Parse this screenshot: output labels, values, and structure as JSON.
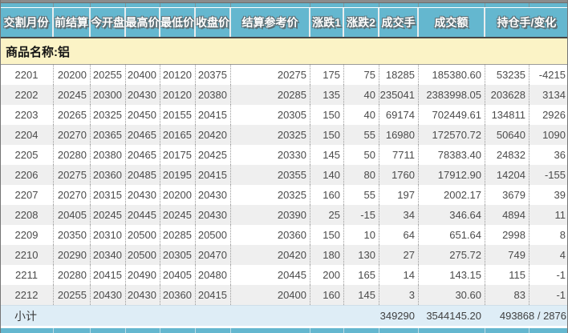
{
  "colors": {
    "header_bg": "#64B7CF",
    "product_row_bg": "#FBF3C6",
    "alt_row_bg": "#EFEFEF",
    "subtotal_bg": "#DEEDF6"
  },
  "table": {
    "headers": [
      "交割月份",
      "前结算",
      "今开盘",
      "最高价",
      "最低价",
      "收盘价",
      "结算参考价",
      "涨跌1",
      "涨跌2",
      "成交手",
      "成交额",
      "持仓手/变化"
    ],
    "product_label": "商品名称:铝",
    "rows": [
      [
        "2201",
        "20200",
        "20255",
        "20400",
        "20120",
        "20375",
        "20275",
        "175",
        "75",
        "18285",
        "185380.60",
        "53235",
        "-4215"
      ],
      [
        "2202",
        "20245",
        "20300",
        "20430",
        "20120",
        "20380",
        "20285",
        "135",
        "40",
        "235041",
        "2383998.05",
        "203628",
        "3134"
      ],
      [
        "2203",
        "20265",
        "20325",
        "20450",
        "20155",
        "20415",
        "20305",
        "150",
        "40",
        "69174",
        "702449.61",
        "134811",
        "2926"
      ],
      [
        "2204",
        "20270",
        "20365",
        "20465",
        "20165",
        "20420",
        "20325",
        "150",
        "55",
        "16980",
        "172570.72",
        "50640",
        "1090"
      ],
      [
        "2205",
        "20280",
        "20380",
        "20465",
        "20175",
        "20425",
        "20330",
        "145",
        "50",
        "7711",
        "78383.40",
        "24832",
        "36"
      ],
      [
        "2206",
        "20275",
        "20360",
        "20485",
        "20195",
        "20415",
        "20355",
        "140",
        "80",
        "1760",
        "17912.90",
        "14204",
        "-155"
      ],
      [
        "2207",
        "20270",
        "20315",
        "20430",
        "20200",
        "20430",
        "20325",
        "160",
        "55",
        "197",
        "2002.17",
        "3679",
        "39"
      ],
      [
        "2208",
        "20405",
        "20245",
        "20445",
        "20245",
        "20430",
        "20390",
        "25",
        "-15",
        "34",
        "346.64",
        "4894",
        "11"
      ],
      [
        "2209",
        "20350",
        "20310",
        "20500",
        "20285",
        "20500",
        "20360",
        "150",
        "10",
        "64",
        "651.64",
        "2998",
        "8"
      ],
      [
        "2210",
        "20290",
        "20340",
        "20500",
        "20305",
        "20470",
        "20420",
        "180",
        "130",
        "27",
        "275.72",
        "749",
        "4"
      ],
      [
        "2211",
        "20280",
        "20415",
        "20490",
        "20405",
        "20480",
        "20445",
        "200",
        "165",
        "14",
        "143.15",
        "115",
        "-1"
      ],
      [
        "2212",
        "20255",
        "20430",
        "20430",
        "20360",
        "20415",
        "20400",
        "160",
        "145",
        "3",
        "30.60",
        "83",
        "-1"
      ]
    ],
    "subtotal": {
      "label": "小计",
      "volume_total": "349290",
      "turnover_total": "3544145.20",
      "open_interest_total": "493868 / 2876"
    }
  }
}
